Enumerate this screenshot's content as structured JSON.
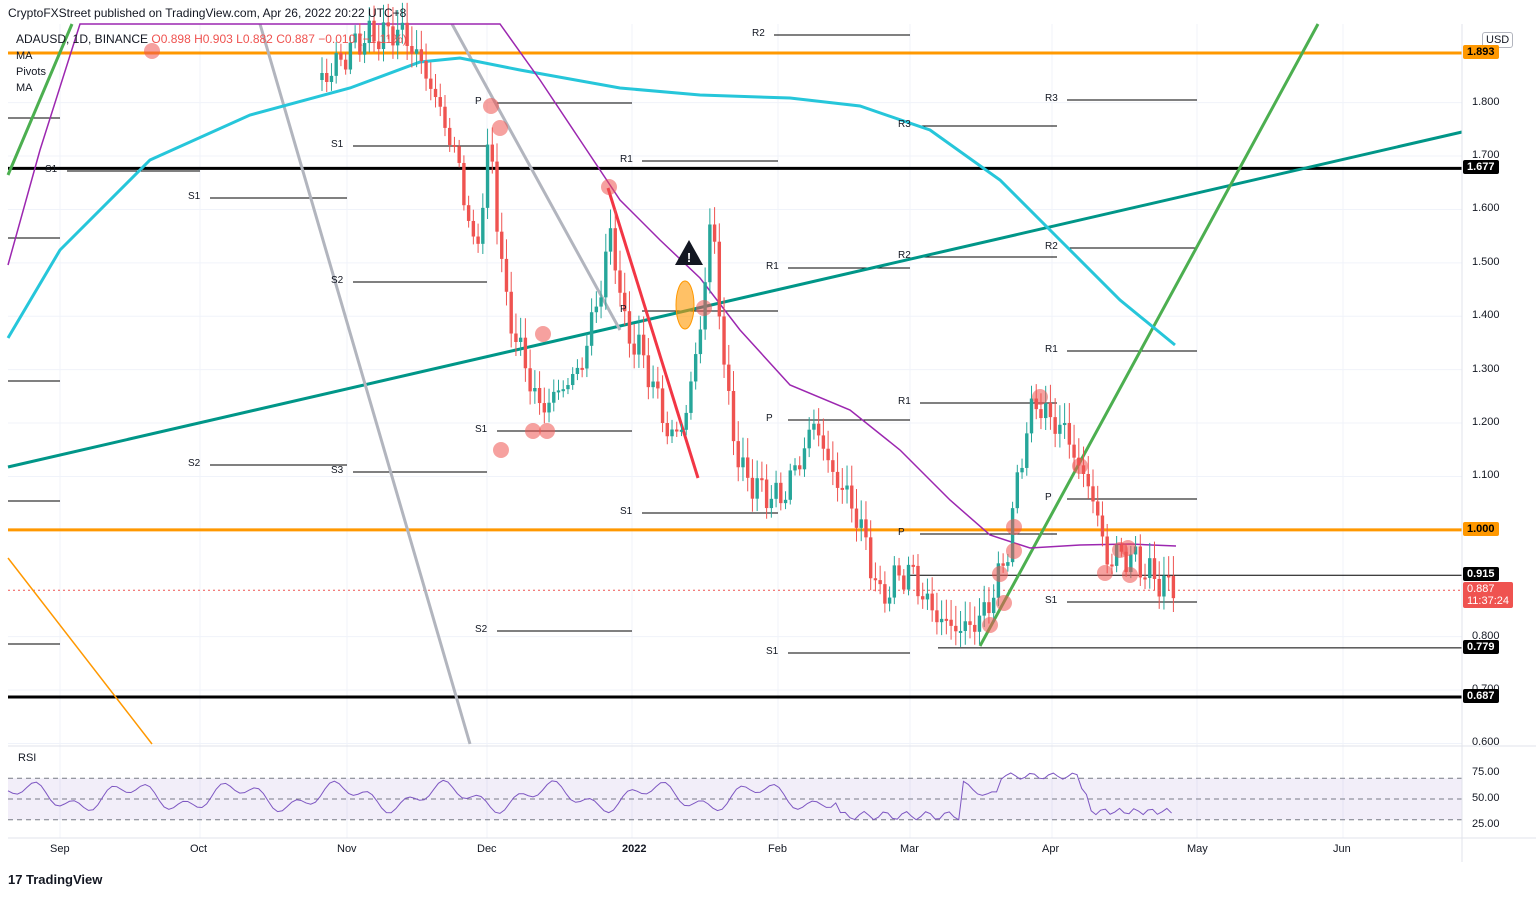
{
  "header": {
    "published": "CryptoFXStreet published on TradingView.com, Apr 26, 2022 20:22 UTC+8"
  },
  "symbol_line": {
    "symbol": "ADAUSD, 1D, BINANCE",
    "open": "O0.898",
    "high": "H0.903",
    "low": "L0.882",
    "close": "C0.887",
    "change": "−0.010 (−1.11%)"
  },
  "indicators": [
    "MA",
    "Pivots",
    "MA"
  ],
  "currency_button": "USD",
  "branding": "TradingView",
  "colors": {
    "up": "#26a69a",
    "down": "#ef5350",
    "orange": "#ff9800",
    "black": "#000000",
    "teal": "#009688",
    "green": "#4caf50",
    "cyan": "#26c6da",
    "purple": "#9c27b0",
    "red": "#f23645",
    "gray": "#b2b5be",
    "rsi": "#7e57c2"
  },
  "chart_data": {
    "type": "candlestick",
    "instrument": "ADAUSD",
    "timeframe": "1D",
    "exchange": "BINANCE",
    "y_axis": {
      "ticks": [
        "1.800",
        "1.700",
        "1.600",
        "1.500",
        "1.400",
        "1.300",
        "1.200",
        "1.100",
        "0.800",
        "0.700",
        "0.600"
      ],
      "tick_values": [
        1.8,
        1.7,
        1.6,
        1.5,
        1.4,
        1.3,
        1.2,
        1.1,
        0.8,
        0.7,
        0.6
      ],
      "range": [
        0.59,
        1.93
      ]
    },
    "x_axis": {
      "ticks": [
        "Sep",
        "Oct",
        "Nov",
        "Dec",
        "2022",
        "Feb",
        "Mar",
        "Apr",
        "May",
        "Jun"
      ]
    },
    "price_tags": [
      {
        "label": "1.893",
        "value": 1.893,
        "style": "orange"
      },
      {
        "label": "1.677",
        "value": 1.677,
        "style": "black"
      },
      {
        "label": "1.000",
        "value": 1.0,
        "style": "orange"
      },
      {
        "label": "0.915",
        "value": 0.915,
        "style": "black"
      },
      {
        "label": "0.887",
        "value": 0.887,
        "style": "current",
        "countdown": "11:37:24"
      },
      {
        "label": "0.779",
        "value": 0.779,
        "style": "black"
      },
      {
        "label": "0.687",
        "value": 0.687,
        "style": "black"
      }
    ],
    "horizontal_levels": [
      {
        "value": 1.893,
        "color": "orange"
      },
      {
        "value": 1.677,
        "color": "black"
      },
      {
        "value": 1.0,
        "color": "orange"
      },
      {
        "value": 0.687,
        "color": "black"
      }
    ],
    "pivot_labels": [
      "R2",
      "P",
      "S1",
      "S1",
      "S1",
      "S2",
      "S2",
      "S3",
      "R1",
      "P",
      "S1",
      "S2",
      "R3",
      "R2",
      "R1",
      "P",
      "P",
      "S1",
      "R1",
      "S1",
      "R3",
      "R2",
      "R1",
      "P",
      "S1"
    ],
    "rsi": {
      "label": "RSI",
      "ticks": [
        "75.00",
        "50.00",
        "25.00"
      ],
      "tick_values": [
        75,
        50,
        25
      ],
      "band": [
        30,
        70
      ],
      "range": [
        20,
        80
      ]
    }
  }
}
